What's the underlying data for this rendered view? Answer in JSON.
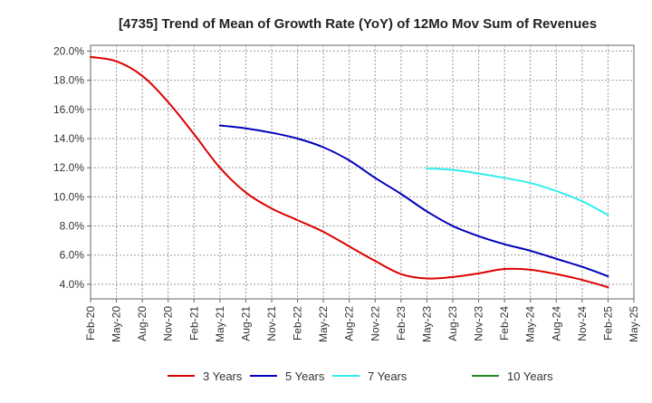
{
  "chart_data": {
    "type": "line",
    "title": "[4735]  Trend of Mean of Growth Rate (YoY) of 12Mo Mov Sum of Revenues",
    "xlabel": "",
    "ylabel": "",
    "x_ticks": [
      "Feb-20",
      "May-20",
      "Aug-20",
      "Nov-20",
      "Feb-21",
      "May-21",
      "Aug-21",
      "Nov-21",
      "Feb-22",
      "May-22",
      "Aug-22",
      "Nov-22",
      "Feb-23",
      "May-23",
      "Aug-23",
      "Nov-23",
      "Feb-24",
      "May-24",
      "Aug-24",
      "Nov-24",
      "Feb-25",
      "May-25"
    ],
    "y_ticks": [
      "4.0%",
      "6.0%",
      "8.0%",
      "10.0%",
      "12.0%",
      "14.0%",
      "16.0%",
      "18.0%",
      "20.0%"
    ],
    "ylim": [
      3.0,
      20.4
    ],
    "grid": true,
    "legend_position": "bottom",
    "series": [
      {
        "name": "3 Years",
        "color": "#dd0000",
        "points": [
          [
            "Feb-20",
            19.6
          ],
          [
            "May-20",
            19.3
          ],
          [
            "Aug-20",
            18.3
          ],
          [
            "Nov-20",
            16.5
          ],
          [
            "Feb-21",
            14.3
          ],
          [
            "May-21",
            12.0
          ],
          [
            "Aug-21",
            10.3
          ],
          [
            "Nov-21",
            9.2
          ],
          [
            "Feb-22",
            8.4
          ],
          [
            "May-22",
            7.6
          ],
          [
            "Aug-22",
            6.6
          ],
          [
            "Nov-22",
            5.6
          ],
          [
            "Feb-23",
            4.7
          ],
          [
            "May-23",
            4.4
          ],
          [
            "Aug-23",
            4.5
          ],
          [
            "Nov-23",
            4.75
          ],
          [
            "Feb-24",
            5.05
          ],
          [
            "May-24",
            5.0
          ],
          [
            "Aug-24",
            4.7
          ],
          [
            "Nov-24",
            4.3
          ],
          [
            "Feb-25",
            3.8
          ]
        ]
      },
      {
        "name": "5 Years",
        "color": "#0000bb",
        "points": [
          [
            "May-21",
            14.9
          ],
          [
            "Aug-21",
            14.7
          ],
          [
            "Nov-21",
            14.4
          ],
          [
            "Feb-22",
            14.0
          ],
          [
            "May-22",
            13.4
          ],
          [
            "Aug-22",
            12.5
          ],
          [
            "Nov-22",
            11.3
          ],
          [
            "Feb-23",
            10.2
          ],
          [
            "May-23",
            9.0
          ],
          [
            "Aug-23",
            8.0
          ],
          [
            "Nov-23",
            7.3
          ],
          [
            "Feb-24",
            6.75
          ],
          [
            "May-24",
            6.3
          ],
          [
            "Aug-24",
            5.75
          ],
          [
            "Nov-24",
            5.2
          ],
          [
            "Feb-25",
            4.55
          ]
        ]
      },
      {
        "name": "7 Years",
        "color": "#33eeee",
        "points": [
          [
            "May-23",
            11.95
          ],
          [
            "Aug-23",
            11.85
          ],
          [
            "Nov-23",
            11.6
          ],
          [
            "Feb-24",
            11.3
          ],
          [
            "May-24",
            10.95
          ],
          [
            "Aug-24",
            10.4
          ],
          [
            "Nov-24",
            9.7
          ],
          [
            "Feb-25",
            8.75
          ]
        ]
      },
      {
        "name": "10 Years",
        "color": "#228822",
        "points": []
      }
    ]
  }
}
